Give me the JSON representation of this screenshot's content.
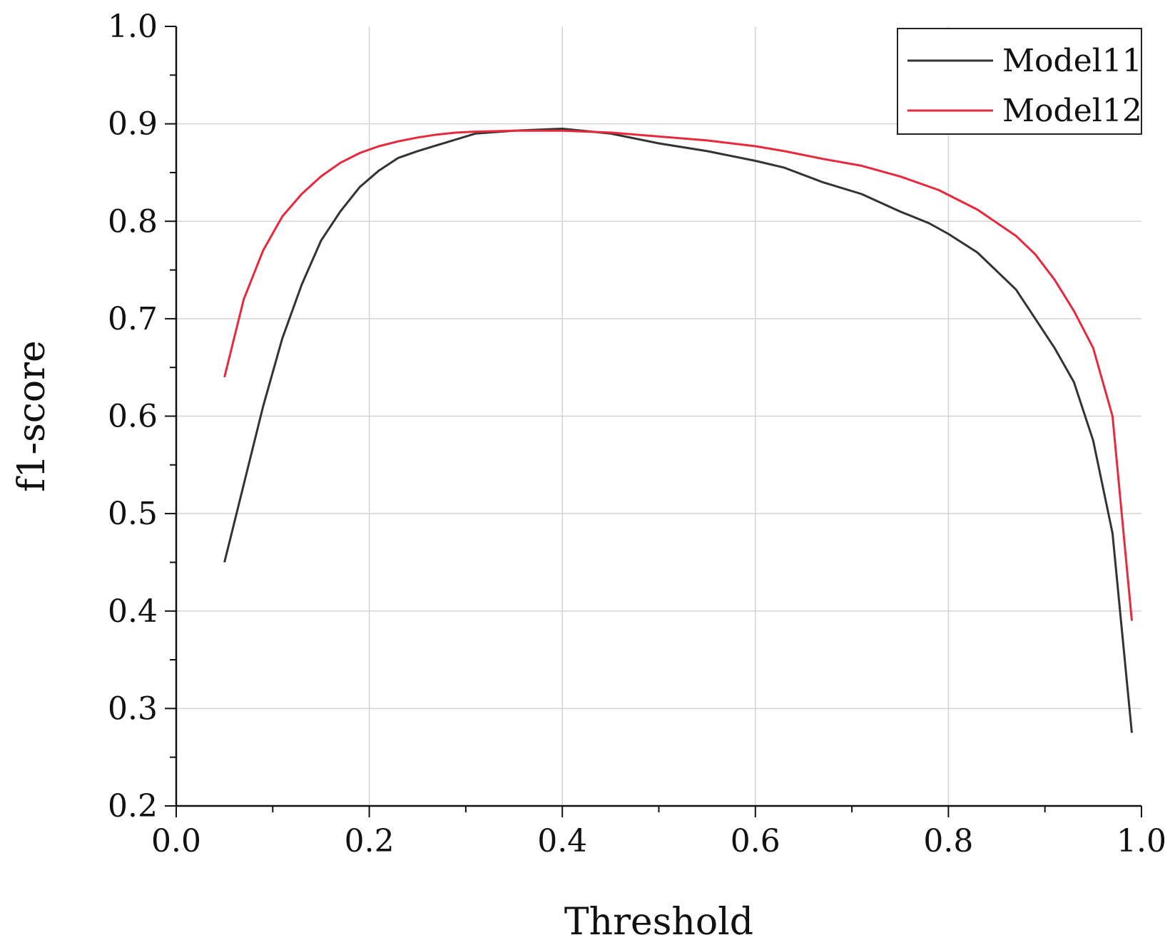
{
  "chart_data": {
    "type": "line",
    "title": "",
    "xlabel": "Threshold",
    "ylabel": "f1-score",
    "xlim": [
      0.0,
      1.0
    ],
    "ylim": [
      0.2,
      1.0
    ],
    "x_ticks": [
      "0.0",
      "0.2",
      "0.4",
      "0.6",
      "0.8",
      "1.0"
    ],
    "y_ticks": [
      "0.2",
      "0.3",
      "0.4",
      "0.5",
      "0.6",
      "0.7",
      "0.8",
      "0.9",
      "1.0"
    ],
    "grid": true,
    "legend_position": "top-right",
    "series": [
      {
        "name": "Model11",
        "color": "#333333",
        "x": [
          0.05,
          0.07,
          0.09,
          0.11,
          0.13,
          0.15,
          0.17,
          0.19,
          0.21,
          0.23,
          0.25,
          0.27,
          0.29,
          0.31,
          0.35,
          0.4,
          0.45,
          0.5,
          0.55,
          0.6,
          0.63,
          0.67,
          0.71,
          0.75,
          0.78,
          0.8,
          0.83,
          0.87,
          0.89,
          0.91,
          0.93,
          0.95,
          0.97,
          0.99
        ],
        "y": [
          0.45,
          0.53,
          0.61,
          0.68,
          0.735,
          0.78,
          0.81,
          0.835,
          0.852,
          0.865,
          0.872,
          0.878,
          0.884,
          0.89,
          0.893,
          0.895,
          0.89,
          0.88,
          0.872,
          0.862,
          0.855,
          0.84,
          0.828,
          0.81,
          0.798,
          0.787,
          0.768,
          0.73,
          0.7,
          0.67,
          0.635,
          0.575,
          0.48,
          0.275
        ]
      },
      {
        "name": "Model12",
        "color": "#e8283c",
        "x": [
          0.05,
          0.07,
          0.09,
          0.11,
          0.13,
          0.15,
          0.17,
          0.19,
          0.21,
          0.23,
          0.25,
          0.27,
          0.29,
          0.31,
          0.35,
          0.4,
          0.45,
          0.5,
          0.55,
          0.6,
          0.63,
          0.67,
          0.71,
          0.75,
          0.79,
          0.83,
          0.87,
          0.89,
          0.91,
          0.93,
          0.95,
          0.97,
          0.99
        ],
        "y": [
          0.64,
          0.72,
          0.77,
          0.805,
          0.828,
          0.846,
          0.86,
          0.87,
          0.877,
          0.882,
          0.886,
          0.889,
          0.891,
          0.892,
          0.893,
          0.893,
          0.891,
          0.887,
          0.883,
          0.877,
          0.872,
          0.864,
          0.857,
          0.846,
          0.832,
          0.812,
          0.785,
          0.766,
          0.74,
          0.708,
          0.67,
          0.6,
          0.39
        ]
      }
    ]
  }
}
